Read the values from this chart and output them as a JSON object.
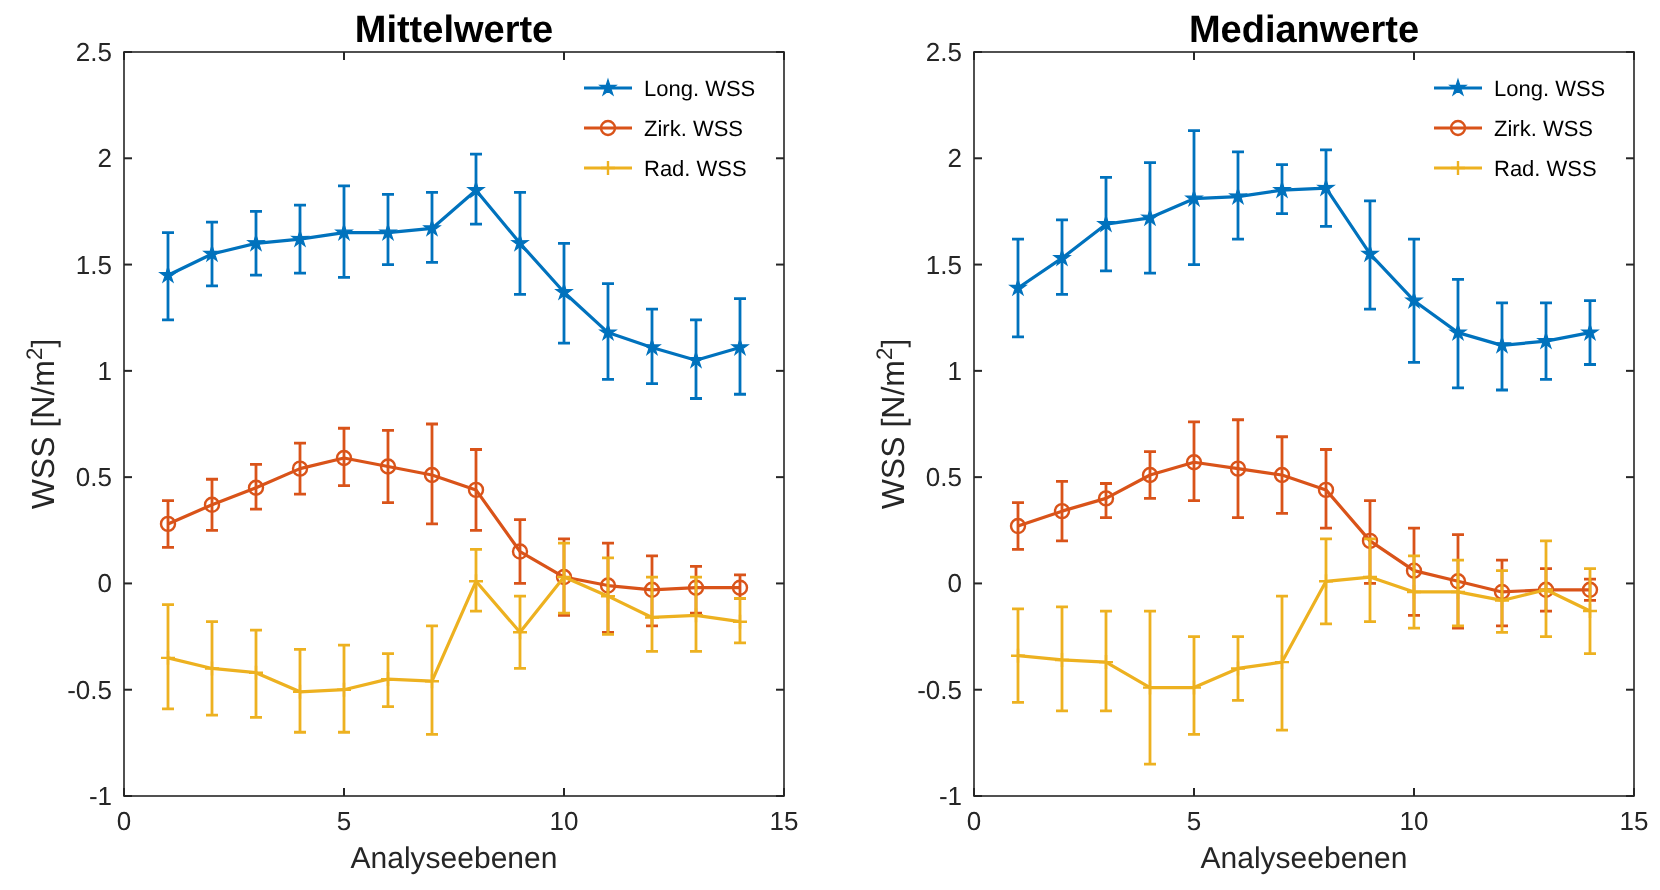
{
  "chart_data": [
    {
      "type": "line",
      "title": "Mittelwerte",
      "xlabel": "Analyseebenen",
      "ylabel": "WSS [N/m$^{2}$]",
      "xlim": [
        0,
        15
      ],
      "xticks": [
        0,
        5,
        10,
        15
      ],
      "ylim": [
        -1,
        2.5
      ],
      "yticks": [
        -1,
        -0.5,
        0,
        0.5,
        1,
        1.5,
        2,
        2.5
      ],
      "grid": false,
      "legend": "top right",
      "x": [
        1,
        2,
        3,
        4,
        5,
        6,
        7,
        8,
        9,
        10,
        11,
        12,
        13,
        14
      ],
      "series": [
        {
          "name": "Long. WSS",
          "color": "#0072bd",
          "marker": "star",
          "values": [
            1.45,
            1.55,
            1.6,
            1.62,
            1.65,
            1.65,
            1.67,
            1.85,
            1.6,
            1.37,
            1.18,
            1.11,
            1.05,
            1.11
          ],
          "errors": [
            [
              1.24,
              1.65
            ],
            [
              1.4,
              1.7
            ],
            [
              1.45,
              1.75
            ],
            [
              1.46,
              1.78
            ],
            [
              1.44,
              1.87
            ],
            [
              1.5,
              1.83
            ],
            [
              1.51,
              1.84
            ],
            [
              1.69,
              2.02
            ],
            [
              1.36,
              1.84
            ],
            [
              1.13,
              1.6
            ],
            [
              0.96,
              1.41
            ],
            [
              0.94,
              1.29
            ],
            [
              0.87,
              1.24
            ],
            [
              0.89,
              1.34
            ]
          ]
        },
        {
          "name": "Zirk. WSS",
          "color": "#d95319",
          "marker": "circle",
          "values": [
            0.28,
            0.37,
            0.45,
            0.54,
            0.59,
            0.55,
            0.51,
            0.44,
            0.15,
            0.03,
            -0.01,
            -0.03,
            -0.02,
            -0.02
          ],
          "errors": [
            [
              0.17,
              0.39
            ],
            [
              0.25,
              0.49
            ],
            [
              0.35,
              0.56
            ],
            [
              0.42,
              0.66
            ],
            [
              0.46,
              0.73
            ],
            [
              0.38,
              0.72
            ],
            [
              0.28,
              0.75
            ],
            [
              0.25,
              0.63
            ],
            [
              0.0,
              0.3
            ],
            [
              -0.15,
              0.21
            ],
            [
              -0.23,
              0.19
            ],
            [
              -0.2,
              0.13
            ],
            [
              -0.14,
              0.08
            ],
            [
              -0.07,
              0.04
            ]
          ]
        },
        {
          "name": "Rad. WSS",
          "color": "#edb120",
          "marker": "cross",
          "values": [
            -0.35,
            -0.4,
            -0.42,
            -0.51,
            -0.5,
            -0.45,
            -0.46,
            0.01,
            -0.23,
            0.03,
            -0.06,
            -0.16,
            -0.15,
            -0.18
          ],
          "errors": [
            [
              -0.59,
              -0.1
            ],
            [
              -0.62,
              -0.18
            ],
            [
              -0.63,
              -0.22
            ],
            [
              -0.7,
              -0.31
            ],
            [
              -0.7,
              -0.29
            ],
            [
              -0.58,
              -0.33
            ],
            [
              -0.71,
              -0.2
            ],
            [
              -0.13,
              0.16
            ],
            [
              -0.4,
              -0.06
            ],
            [
              -0.14,
              0.19
            ],
            [
              -0.24,
              0.12
            ],
            [
              -0.32,
              0.03
            ],
            [
              -0.32,
              0.03
            ],
            [
              -0.28,
              -0.07
            ]
          ]
        }
      ]
    },
    {
      "type": "line",
      "title": "Medianwerte",
      "xlabel": "Analyseebenen",
      "ylabel": "WSS [N/m$^{2}$]",
      "xlim": [
        0,
        15
      ],
      "xticks": [
        0,
        5,
        10,
        15
      ],
      "ylim": [
        -1,
        2.5
      ],
      "yticks": [
        -1,
        -0.5,
        0,
        0.5,
        1,
        1.5,
        2,
        2.5
      ],
      "grid": false,
      "legend": "top right",
      "x": [
        1,
        2,
        3,
        4,
        5,
        6,
        7,
        8,
        9,
        10,
        11,
        12,
        13,
        14
      ],
      "series": [
        {
          "name": "Long. WSS",
          "color": "#0072bd",
          "marker": "star",
          "values": [
            1.39,
            1.53,
            1.69,
            1.72,
            1.81,
            1.82,
            1.85,
            1.86,
            1.55,
            1.33,
            1.18,
            1.12,
            1.14,
            1.18
          ],
          "errors": [
            [
              1.16,
              1.62
            ],
            [
              1.36,
              1.71
            ],
            [
              1.47,
              1.91
            ],
            [
              1.46,
              1.98
            ],
            [
              1.5,
              2.13
            ],
            [
              1.62,
              2.03
            ],
            [
              1.74,
              1.97
            ],
            [
              1.68,
              2.04
            ],
            [
              1.29,
              1.8
            ],
            [
              1.04,
              1.62
            ],
            [
              0.92,
              1.43
            ],
            [
              0.91,
              1.32
            ],
            [
              0.96,
              1.32
            ],
            [
              1.03,
              1.33
            ]
          ]
        },
        {
          "name": "Zirk. WSS",
          "color": "#d95319",
          "marker": "circle",
          "values": [
            0.27,
            0.34,
            0.4,
            0.51,
            0.57,
            0.54,
            0.51,
            0.44,
            0.2,
            0.06,
            0.01,
            -0.04,
            -0.03,
            -0.03
          ],
          "errors": [
            [
              0.16,
              0.38
            ],
            [
              0.2,
              0.48
            ],
            [
              0.31,
              0.47
            ],
            [
              0.4,
              0.62
            ],
            [
              0.39,
              0.76
            ],
            [
              0.31,
              0.77
            ],
            [
              0.33,
              0.69
            ],
            [
              0.26,
              0.63
            ],
            [
              0.0,
              0.39
            ],
            [
              -0.15,
              0.26
            ],
            [
              -0.21,
              0.23
            ],
            [
              -0.2,
              0.11
            ],
            [
              -0.13,
              0.07
            ],
            [
              -0.08,
              0.02
            ]
          ]
        },
        {
          "name": "Rad. WSS",
          "color": "#edb120",
          "marker": "cross",
          "values": [
            -0.34,
            -0.36,
            -0.37,
            -0.49,
            -0.49,
            -0.4,
            -0.37,
            0.01,
            0.03,
            -0.04,
            -0.04,
            -0.08,
            -0.03,
            -0.13
          ],
          "errors": [
            [
              -0.56,
              -0.12
            ],
            [
              -0.6,
              -0.11
            ],
            [
              -0.6,
              -0.13
            ],
            [
              -0.85,
              -0.13
            ],
            [
              -0.71,
              -0.25
            ],
            [
              -0.55,
              -0.25
            ],
            [
              -0.69,
              -0.06
            ],
            [
              -0.19,
              0.21
            ],
            [
              -0.18,
              0.21
            ],
            [
              -0.21,
              0.13
            ],
            [
              -0.2,
              0.11
            ],
            [
              -0.23,
              0.06
            ],
            [
              -0.25,
              0.2
            ],
            [
              -0.33,
              0.07
            ]
          ]
        }
      ]
    }
  ]
}
